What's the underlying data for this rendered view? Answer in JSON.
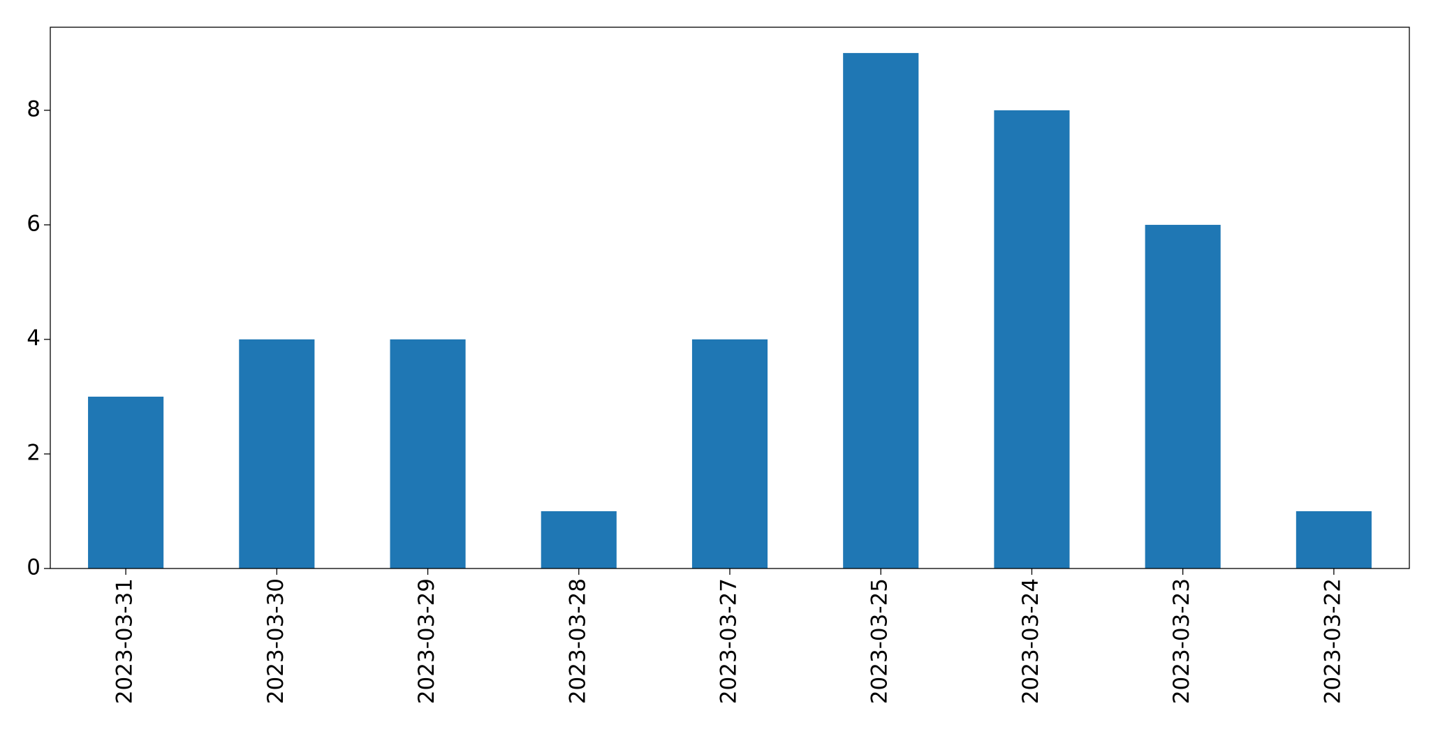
{
  "chart_data": {
    "type": "bar",
    "categories": [
      "2023-03-31",
      "2023-03-30",
      "2023-03-29",
      "2023-03-28",
      "2023-03-27",
      "2023-03-25",
      "2023-03-24",
      "2023-03-23",
      "2023-03-22"
    ],
    "values": [
      3,
      4,
      4,
      1,
      4,
      9,
      8,
      6,
      1
    ],
    "color": "#1f77b4",
    "ylim": [
      0,
      9.45
    ],
    "yticks": [
      0,
      2,
      4,
      6,
      8
    ],
    "grid": false
  }
}
